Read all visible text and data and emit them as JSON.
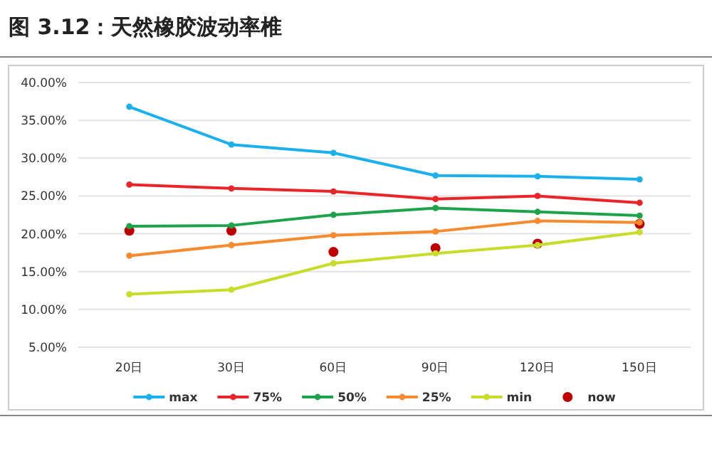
{
  "chart_data": {
    "type": "line",
    "title": "图 3.12：天然橡胶波动率椎",
    "categories": [
      "20日",
      "30日",
      "60日",
      "90日",
      "120日",
      "150日"
    ],
    "series": [
      {
        "name": "max",
        "color": "#1ab0ec",
        "values": [
          36.8,
          31.8,
          30.7,
          27.7,
          27.6,
          27.2
        ]
      },
      {
        "name": "75%",
        "color": "#e8262a",
        "values": [
          26.5,
          26.0,
          25.6,
          24.6,
          25.0,
          24.1
        ]
      },
      {
        "name": "50%",
        "color": "#1fa34a",
        "values": [
          21.0,
          21.1,
          22.5,
          23.4,
          22.9,
          22.4
        ]
      },
      {
        "name": "25%",
        "color": "#f58a2e",
        "values": [
          17.1,
          18.5,
          19.8,
          20.3,
          21.7,
          21.5
        ]
      },
      {
        "name": "min",
        "color": "#c8dc2a",
        "values": [
          12.0,
          12.6,
          16.1,
          17.4,
          18.5,
          20.2
        ]
      },
      {
        "name": "now",
        "type": "scatter",
        "color": "#c00000",
        "values": [
          20.4,
          20.4,
          17.6,
          18.1,
          18.7,
          21.3
        ]
      }
    ],
    "ylim": [
      5,
      40
    ],
    "yticks": [
      {
        "value": 5,
        "label": "5.00%"
      },
      {
        "value": 10,
        "label": "10.00%"
      },
      {
        "value": 15,
        "label": "15.00%"
      },
      {
        "value": 20,
        "label": "20.00%"
      },
      {
        "value": 25,
        "label": "25.00%"
      },
      {
        "value": 30,
        "label": "30.00%"
      },
      {
        "value": 35,
        "label": "35.00%"
      },
      {
        "value": 40,
        "label": "40.00%"
      }
    ],
    "grid": "y",
    "legend": "bottom",
    "marker": "circle"
  }
}
